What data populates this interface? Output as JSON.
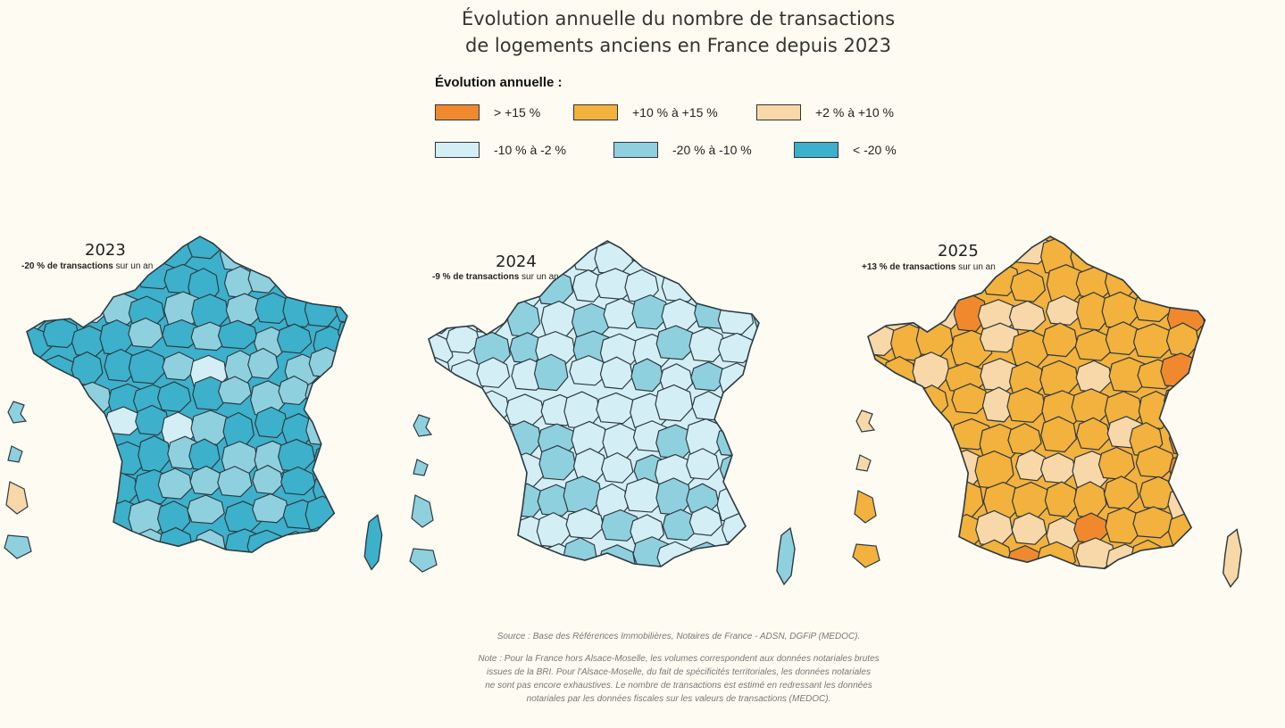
{
  "title": {
    "line1": "Évolution annuelle du nombre de transactions",
    "line2": "de logements anciens en France depuis 2023"
  },
  "legend": {
    "title": "Évolution annuelle :",
    "items": [
      {
        "label": "> +15 %",
        "color": "#f0892d"
      },
      {
        "label": "+10 % à +15 %",
        "color": "#f3b13d"
      },
      {
        "label": "+2 % à +10 %",
        "color": "#f8d8a8"
      },
      {
        "label": "-10 % à -2 %",
        "color": "#d4eef5"
      },
      {
        "label": "-20 % à -10 %",
        "color": "#8fd0df"
      },
      {
        "label": "< -20 %",
        "color": "#3db0cb"
      }
    ]
  },
  "maps": [
    {
      "year": "2023",
      "change": "-20 % de transactions",
      "suffix": "sur un an",
      "main_color": "#3db0cb",
      "alt_color": "#8fd0df",
      "alt2_color": "#d4eef5"
    },
    {
      "year": "2024",
      "change": "-9 % de transactions",
      "suffix": "sur un an",
      "main_color": "#d4eef5",
      "alt_color": "#8fd0df",
      "alt2_color": "#d4eef5"
    },
    {
      "year": "2025",
      "change": "+13 % de transactions",
      "suffix": "sur un an",
      "main_color": "#f3b13d",
      "alt_color": "#f8d8a8",
      "alt2_color": "#f0892d"
    }
  ],
  "source": "Source : Base des Références Immobilières, Notaires de France - ADSN, DGFiP (MEDOC).",
  "note": [
    "Note : Pour la France hors Alsace-Moselle, les volumes correspondent aux données notariales brutes",
    "issues de la BRI. Pour l'Alsace-Moselle, du fait de spécificités territoriales, les données notariales",
    "ne sont pas encore exhaustives. Le nombre de transactions est estimé en redressant les données",
    "notariales par les données fiscales sur les valeurs de transactions (MEDOC)."
  ]
}
